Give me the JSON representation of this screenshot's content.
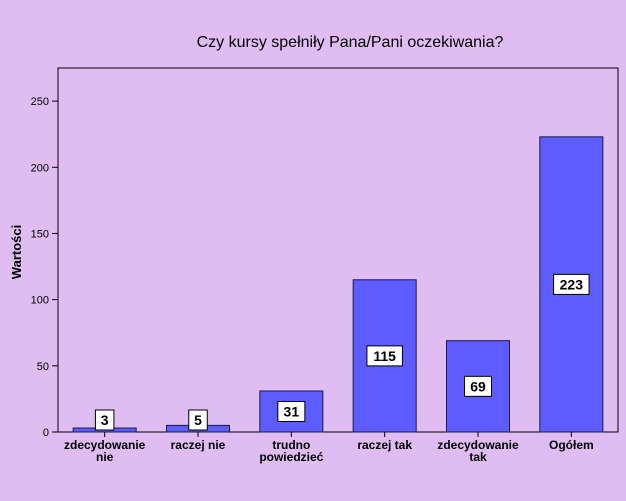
{
  "chart_data": {
    "type": "bar",
    "title": "Czy kursy spełniły Pana/Pani oczekiwania?",
    "ylabel": "Wartości",
    "xlabel": "",
    "categories": [
      [
        "zdecydowanie",
        "nie"
      ],
      [
        "raczej nie"
      ],
      [
        "trudno",
        "powiedzieć"
      ],
      [
        "raczej tak"
      ],
      [
        "zdecydowanie",
        "tak"
      ],
      [
        "Ogółem"
      ]
    ],
    "values": [
      3,
      5,
      31,
      115,
      69,
      223
    ],
    "data_labels": [
      "3",
      "5",
      "31",
      "115",
      "69",
      "223"
    ],
    "ylim": [
      0,
      275
    ],
    "yticks": [
      0,
      50,
      100,
      150,
      200,
      250
    ],
    "grid": false,
    "legend": "none",
    "colors": {
      "background": "#dfbdf3",
      "bar_fill": "#5c5cff",
      "bar_stroke": "#1a1a4a",
      "label_box": "#ffffff"
    }
  }
}
